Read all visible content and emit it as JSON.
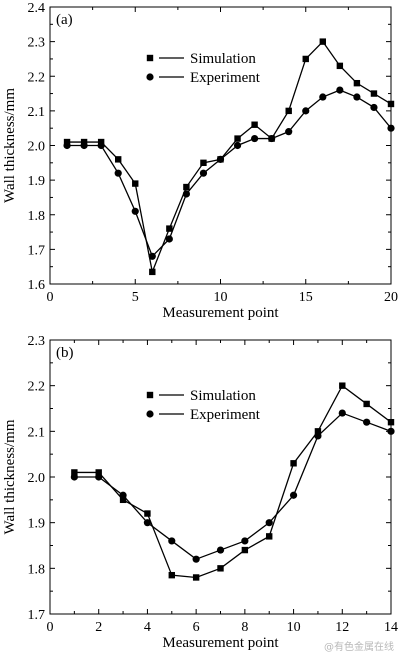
{
  "chart_data": [
    {
      "type": "line",
      "panel_label": "(a)",
      "xlabel": "Measurement point",
      "ylabel": "Wall thickness/mm",
      "xlim": [
        0,
        20
      ],
      "ylim": [
        1.6,
        2.4
      ],
      "xticks": [
        0,
        5,
        10,
        15,
        20
      ],
      "yticks": [
        1.6,
        1.7,
        1.8,
        1.9,
        2.0,
        2.1,
        2.2,
        2.3,
        2.4
      ],
      "xtick_labels": [
        "0",
        "5",
        "10",
        "15",
        "20"
      ],
      "ytick_labels": [
        "1.6",
        "1.7",
        "1.8",
        "1.9",
        "2.0",
        "2.1",
        "2.2",
        "2.3",
        "2.4"
      ],
      "grid": false,
      "legend_position": "top-right",
      "x": [
        1,
        2,
        3,
        4,
        5,
        6,
        7,
        8,
        9,
        10,
        11,
        12,
        13,
        14,
        15,
        16,
        17,
        18,
        19,
        20
      ],
      "series": [
        {
          "name": "Simulation",
          "marker": "square",
          "values": [
            2.01,
            2.01,
            2.01,
            1.96,
            1.89,
            1.635,
            1.76,
            1.88,
            1.95,
            1.96,
            2.02,
            2.06,
            2.02,
            2.1,
            2.25,
            2.3,
            2.23,
            2.18,
            2.15,
            2.12
          ]
        },
        {
          "name": "Experiment",
          "marker": "circle",
          "values": [
            2.0,
            2.0,
            2.0,
            1.92,
            1.81,
            1.68,
            1.73,
            1.86,
            1.92,
            1.96,
            2.0,
            2.02,
            2.02,
            2.04,
            2.1,
            2.14,
            2.16,
            2.14,
            2.11,
            2.05
          ]
        }
      ]
    },
    {
      "type": "line",
      "panel_label": "(b)",
      "xlabel": "Measurement point",
      "ylabel": "Wall thickness/mm",
      "xlim": [
        0,
        14
      ],
      "ylim": [
        1.7,
        2.3
      ],
      "xticks": [
        0,
        2,
        4,
        6,
        8,
        10,
        12,
        14
      ],
      "yticks": [
        1.7,
        1.8,
        1.9,
        2.0,
        2.1,
        2.2,
        2.3
      ],
      "xtick_labels": [
        "0",
        "2",
        "4",
        "6",
        "8",
        "10",
        "12",
        "14"
      ],
      "ytick_labels": [
        "1.7",
        "1.8",
        "1.9",
        "2.0",
        "2.1",
        "2.2",
        "2.3"
      ],
      "grid": false,
      "legend_position": "top-right",
      "x": [
        1,
        2,
        3,
        4,
        5,
        6,
        7,
        8,
        9,
        10,
        11,
        12,
        13,
        14
      ],
      "series": [
        {
          "name": "Simulation",
          "marker": "square",
          "values": [
            2.01,
            2.01,
            1.95,
            1.92,
            1.785,
            1.78,
            1.8,
            1.84,
            1.87,
            2.03,
            2.1,
            2.2,
            2.16,
            2.12
          ]
        },
        {
          "name": "Experiment",
          "marker": "circle",
          "values": [
            2.0,
            2.0,
            1.96,
            1.9,
            1.86,
            1.82,
            1.84,
            1.86,
            1.9,
            1.96,
            2.09,
            2.14,
            2.12,
            2.1
          ]
        }
      ]
    }
  ],
  "watermark": "@有色金属在线",
  "colors": {
    "line": "#000000",
    "background": "#ffffff"
  }
}
